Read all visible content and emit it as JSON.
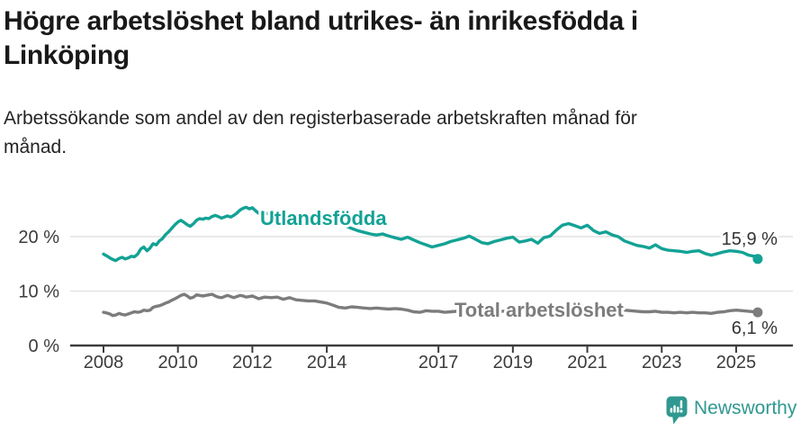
{
  "header": {
    "title_lines": [
      "Högre arbetslöshet bland utrikes- än inrikesfödda i",
      "Linköping"
    ],
    "subtitle_lines": [
      "Arbetssökande som andel av den registerbaserade arbetskraften månad för",
      "månad."
    ]
  },
  "chart_data": {
    "type": "line",
    "title": "Högre arbetslöshet bland utrikes- än inrikesfödda i Linköping",
    "subtitle": "Arbetssökande som andel av den registerbaserade arbetskraften månad för månad.",
    "unit": "%",
    "grid": "horizontal",
    "legend": "inline-labels",
    "xlim": [
      2007.7,
      2026.3
    ],
    "ylim": [
      0,
      28
    ],
    "x_ticks": [
      2008,
      2010,
      2012,
      2014,
      2017,
      2019,
      2021,
      2023,
      2025
    ],
    "y_ticks": [
      {
        "value": 0,
        "label": "0 %"
      },
      {
        "value": 10,
        "label": "10 %"
      },
      {
        "value": 20,
        "label": "20 %"
      }
    ],
    "series": [
      {
        "name": "Utlandsfödda",
        "color": "#13a295",
        "end_label": "15,9 %",
        "end_value": 15.9,
        "points": [
          [
            2008.0,
            16.8
          ],
          [
            2008.08,
            16.5
          ],
          [
            2008.17,
            16.1
          ],
          [
            2008.25,
            15.8
          ],
          [
            2008.33,
            15.6
          ],
          [
            2008.42,
            16.0
          ],
          [
            2008.5,
            16.2
          ],
          [
            2008.58,
            15.9
          ],
          [
            2008.67,
            16.1
          ],
          [
            2008.75,
            16.4
          ],
          [
            2008.83,
            16.3
          ],
          [
            2008.92,
            16.8
          ],
          [
            2009.0,
            17.7
          ],
          [
            2009.08,
            18.1
          ],
          [
            2009.17,
            17.4
          ],
          [
            2009.25,
            17.9
          ],
          [
            2009.33,
            18.7
          ],
          [
            2009.42,
            18.5
          ],
          [
            2009.5,
            19.2
          ],
          [
            2009.58,
            19.6
          ],
          [
            2009.67,
            20.4
          ],
          [
            2009.75,
            20.9
          ],
          [
            2009.83,
            21.5
          ],
          [
            2009.92,
            22.2
          ],
          [
            2010.0,
            22.7
          ],
          [
            2010.08,
            23.0
          ],
          [
            2010.17,
            22.6
          ],
          [
            2010.25,
            22.2
          ],
          [
            2010.33,
            21.9
          ],
          [
            2010.42,
            22.4
          ],
          [
            2010.5,
            23.0
          ],
          [
            2010.58,
            23.3
          ],
          [
            2010.67,
            23.2
          ],
          [
            2010.75,
            23.4
          ],
          [
            2010.83,
            23.3
          ],
          [
            2010.92,
            23.7
          ],
          [
            2011.0,
            23.9
          ],
          [
            2011.08,
            23.7
          ],
          [
            2011.17,
            23.4
          ],
          [
            2011.25,
            23.6
          ],
          [
            2011.33,
            23.8
          ],
          [
            2011.42,
            23.6
          ],
          [
            2011.5,
            23.9
          ],
          [
            2011.58,
            24.3
          ],
          [
            2011.67,
            24.9
          ],
          [
            2011.75,
            25.2
          ],
          [
            2011.83,
            25.4
          ],
          [
            2011.92,
            25.1
          ],
          [
            2012.0,
            25.3
          ],
          [
            2012.08,
            24.8
          ],
          [
            2012.17,
            24.3
          ],
          [
            2012.25,
            24.6
          ],
          [
            2012.33,
            24.4
          ],
          [
            2012.42,
            24.2
          ],
          [
            2012.5,
            24.4
          ],
          [
            2012.58,
            24.0
          ],
          [
            2012.67,
            23.8
          ],
          [
            2012.75,
            24.0
          ],
          [
            2012.83,
            23.7
          ],
          [
            2012.92,
            23.9
          ],
          [
            2013.0,
            23.6
          ],
          [
            2013.17,
            23.3
          ],
          [
            2013.33,
            23.5
          ],
          [
            2013.5,
            23.1
          ],
          [
            2013.67,
            22.8
          ],
          [
            2013.83,
            23.0
          ],
          [
            2014.0,
            22.7
          ],
          [
            2014.17,
            22.3
          ],
          [
            2014.33,
            22.5
          ],
          [
            2014.5,
            22.0
          ],
          [
            2014.67,
            21.5
          ],
          [
            2014.83,
            21.1
          ],
          [
            2015.0,
            20.8
          ],
          [
            2015.17,
            20.5
          ],
          [
            2015.33,
            20.3
          ],
          [
            2015.5,
            20.5
          ],
          [
            2015.67,
            20.1
          ],
          [
            2015.83,
            19.8
          ],
          [
            2016.0,
            19.5
          ],
          [
            2016.17,
            19.9
          ],
          [
            2016.33,
            19.4
          ],
          [
            2016.5,
            18.9
          ],
          [
            2016.67,
            18.5
          ],
          [
            2016.83,
            18.1
          ],
          [
            2017.0,
            18.4
          ],
          [
            2017.17,
            18.7
          ],
          [
            2017.33,
            19.1
          ],
          [
            2017.5,
            19.4
          ],
          [
            2017.67,
            19.7
          ],
          [
            2017.83,
            20.1
          ],
          [
            2018.0,
            19.5
          ],
          [
            2018.17,
            18.9
          ],
          [
            2018.33,
            18.7
          ],
          [
            2018.5,
            19.1
          ],
          [
            2018.67,
            19.4
          ],
          [
            2018.83,
            19.7
          ],
          [
            2019.0,
            19.9
          ],
          [
            2019.17,
            19.0
          ],
          [
            2019.33,
            19.2
          ],
          [
            2019.5,
            19.5
          ],
          [
            2019.67,
            18.8
          ],
          [
            2019.83,
            19.8
          ],
          [
            2020.0,
            20.1
          ],
          [
            2020.17,
            21.2
          ],
          [
            2020.33,
            22.1
          ],
          [
            2020.5,
            22.4
          ],
          [
            2020.67,
            22.0
          ],
          [
            2020.83,
            21.6
          ],
          [
            2021.0,
            22.1
          ],
          [
            2021.17,
            21.1
          ],
          [
            2021.33,
            20.6
          ],
          [
            2021.5,
            20.9
          ],
          [
            2021.67,
            20.3
          ],
          [
            2021.83,
            20.0
          ],
          [
            2022.0,
            19.2
          ],
          [
            2022.17,
            18.8
          ],
          [
            2022.33,
            18.4
          ],
          [
            2022.5,
            18.2
          ],
          [
            2022.67,
            17.9
          ],
          [
            2022.83,
            18.5
          ],
          [
            2023.0,
            17.8
          ],
          [
            2023.17,
            17.5
          ],
          [
            2023.33,
            17.4
          ],
          [
            2023.5,
            17.3
          ],
          [
            2023.67,
            17.1
          ],
          [
            2023.83,
            17.3
          ],
          [
            2024.0,
            17.4
          ],
          [
            2024.17,
            16.9
          ],
          [
            2024.33,
            16.6
          ],
          [
            2024.5,
            16.9
          ],
          [
            2024.67,
            17.2
          ],
          [
            2024.83,
            17.4
          ],
          [
            2025.0,
            17.3
          ],
          [
            2025.17,
            17.1
          ],
          [
            2025.33,
            16.6
          ],
          [
            2025.5,
            16.4
          ],
          [
            2025.58,
            15.9
          ]
        ]
      },
      {
        "name": "Total arbetslöshet",
        "color": "#7c7c7c",
        "end_label": "6,1 %",
        "end_value": 6.1,
        "points": [
          [
            2008.0,
            6.1
          ],
          [
            2008.08,
            6.0
          ],
          [
            2008.17,
            5.8
          ],
          [
            2008.25,
            5.5
          ],
          [
            2008.33,
            5.6
          ],
          [
            2008.42,
            5.9
          ],
          [
            2008.5,
            5.7
          ],
          [
            2008.58,
            5.6
          ],
          [
            2008.67,
            5.8
          ],
          [
            2008.75,
            6.0
          ],
          [
            2008.83,
            6.2
          ],
          [
            2008.92,
            6.1
          ],
          [
            2009.0,
            6.2
          ],
          [
            2009.08,
            6.5
          ],
          [
            2009.17,
            6.4
          ],
          [
            2009.25,
            6.5
          ],
          [
            2009.33,
            7.0
          ],
          [
            2009.42,
            7.2
          ],
          [
            2009.5,
            7.3
          ],
          [
            2009.58,
            7.5
          ],
          [
            2009.67,
            7.8
          ],
          [
            2009.75,
            8.0
          ],
          [
            2009.83,
            8.3
          ],
          [
            2009.92,
            8.6
          ],
          [
            2010.0,
            8.9
          ],
          [
            2010.08,
            9.2
          ],
          [
            2010.17,
            9.4
          ],
          [
            2010.25,
            9.1
          ],
          [
            2010.33,
            8.7
          ],
          [
            2010.42,
            8.9
          ],
          [
            2010.5,
            9.3
          ],
          [
            2010.58,
            9.2
          ],
          [
            2010.67,
            9.1
          ],
          [
            2010.75,
            9.2
          ],
          [
            2010.83,
            9.3
          ],
          [
            2010.92,
            9.4
          ],
          [
            2011.0,
            9.1
          ],
          [
            2011.08,
            8.9
          ],
          [
            2011.17,
            8.8
          ],
          [
            2011.25,
            9.0
          ],
          [
            2011.33,
            9.2
          ],
          [
            2011.42,
            9.0
          ],
          [
            2011.5,
            8.8
          ],
          [
            2011.58,
            9.0
          ],
          [
            2011.67,
            9.2
          ],
          [
            2011.75,
            9.1
          ],
          [
            2011.83,
            8.9
          ],
          [
            2011.92,
            9.0
          ],
          [
            2012.0,
            9.1
          ],
          [
            2012.17,
            8.6
          ],
          [
            2012.33,
            8.9
          ],
          [
            2012.5,
            8.8
          ],
          [
            2012.67,
            8.9
          ],
          [
            2012.83,
            8.5
          ],
          [
            2013.0,
            8.8
          ],
          [
            2013.17,
            8.4
          ],
          [
            2013.33,
            8.3
          ],
          [
            2013.5,
            8.2
          ],
          [
            2013.67,
            8.2
          ],
          [
            2013.83,
            8.0
          ],
          [
            2014.0,
            7.8
          ],
          [
            2014.17,
            7.4
          ],
          [
            2014.33,
            7.0
          ],
          [
            2014.5,
            6.9
          ],
          [
            2014.67,
            7.1
          ],
          [
            2014.83,
            7.0
          ],
          [
            2015.0,
            6.9
          ],
          [
            2015.17,
            6.8
          ],
          [
            2015.33,
            6.9
          ],
          [
            2015.5,
            6.8
          ],
          [
            2015.67,
            6.7
          ],
          [
            2015.83,
            6.8
          ],
          [
            2016.0,
            6.7
          ],
          [
            2016.17,
            6.5
          ],
          [
            2016.33,
            6.2
          ],
          [
            2016.5,
            6.1
          ],
          [
            2016.67,
            6.4
          ],
          [
            2016.83,
            6.3
          ],
          [
            2017.0,
            6.3
          ],
          [
            2017.17,
            6.1
          ],
          [
            2017.33,
            6.2
          ],
          [
            2017.5,
            6.3
          ],
          [
            2017.67,
            6.4
          ],
          [
            2017.83,
            6.4
          ],
          [
            2018.0,
            6.3
          ],
          [
            2018.17,
            6.2
          ],
          [
            2018.33,
            6.1
          ],
          [
            2018.5,
            6.2
          ],
          [
            2018.67,
            6.3
          ],
          [
            2018.83,
            6.3
          ],
          [
            2019.0,
            6.4
          ],
          [
            2019.17,
            6.3
          ],
          [
            2019.33,
            6.4
          ],
          [
            2019.5,
            6.5
          ],
          [
            2019.67,
            6.5
          ],
          [
            2019.83,
            6.6
          ],
          [
            2020.0,
            6.8
          ],
          [
            2020.17,
            7.1
          ],
          [
            2020.33,
            7.3
          ],
          [
            2020.5,
            7.4
          ],
          [
            2020.67,
            7.3
          ],
          [
            2020.83,
            7.2
          ],
          [
            2021.0,
            7.2
          ],
          [
            2021.17,
            7.0
          ],
          [
            2021.33,
            6.9
          ],
          [
            2021.5,
            6.8
          ],
          [
            2021.67,
            6.7
          ],
          [
            2021.83,
            6.6
          ],
          [
            2022.0,
            6.5
          ],
          [
            2022.17,
            6.4
          ],
          [
            2022.33,
            6.3
          ],
          [
            2022.5,
            6.2
          ],
          [
            2022.67,
            6.2
          ],
          [
            2022.83,
            6.3
          ],
          [
            2023.0,
            6.1
          ],
          [
            2023.17,
            6.1
          ],
          [
            2023.33,
            6.0
          ],
          [
            2023.5,
            6.1
          ],
          [
            2023.67,
            6.0
          ],
          [
            2023.83,
            6.1
          ],
          [
            2024.0,
            6.0
          ],
          [
            2024.17,
            6.0
          ],
          [
            2024.33,
            5.9
          ],
          [
            2024.5,
            6.1
          ],
          [
            2024.67,
            6.2
          ],
          [
            2024.83,
            6.4
          ],
          [
            2025.0,
            6.5
          ],
          [
            2025.17,
            6.4
          ],
          [
            2025.33,
            6.3
          ],
          [
            2025.5,
            6.2
          ],
          [
            2025.58,
            6.1
          ]
        ]
      }
    ]
  },
  "footer": {
    "brand": "Newsworthy",
    "brand_color": "#2f9890",
    "icon": "newsworthy-pin-barchart-icon"
  }
}
